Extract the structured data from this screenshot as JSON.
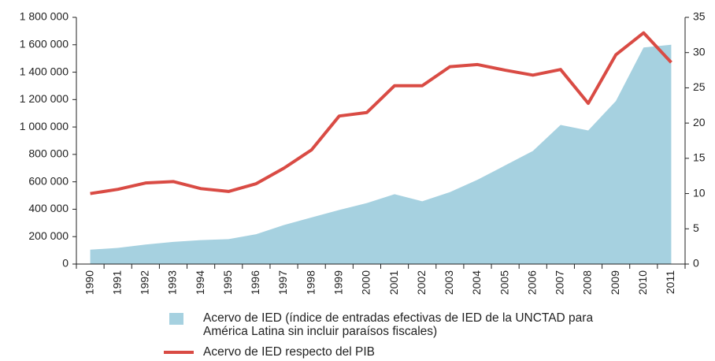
{
  "chart_data": {
    "type": "area-line",
    "categories": [
      "1990",
      "1991",
      "1992",
      "1993",
      "1994",
      "1995",
      "1996",
      "1997",
      "1998",
      "1999",
      "2000",
      "2001",
      "2002",
      "2003",
      "2004",
      "2005",
      "2006",
      "2007",
      "2008",
      "2009",
      "2010",
      "2011"
    ],
    "series": [
      {
        "name": "Acervo de IED (índice de entradas efectivas de IED de la UNCTAD para América Latina sin incluir paraísos fiscales)",
        "type": "area",
        "color": "#a6d1e0",
        "axis": "y",
        "values": [
          105000,
          118000,
          142000,
          162000,
          175000,
          182000,
          218000,
          285000,
          340000,
          395000,
          445000,
          510000,
          458000,
          525000,
          615000,
          720000,
          825000,
          1015000,
          975000,
          1190000,
          1580000,
          1600000
        ]
      },
      {
        "name": "Acervo de IED respecto del PIB",
        "type": "line",
        "color": "#d94b44",
        "axis": "y2",
        "values": [
          10.0,
          10.6,
          11.5,
          11.7,
          10.7,
          10.3,
          11.4,
          13.6,
          16.2,
          21.0,
          21.5,
          25.3,
          25.3,
          28.0,
          28.3,
          27.5,
          26.8,
          27.6,
          22.8,
          29.7,
          32.8,
          28.6
        ]
      }
    ],
    "ylim": [
      0,
      1800000
    ],
    "yticks": [
      0,
      {
        "value": 200000,
        "label": "200 000"
      },
      {
        "value": 400000,
        "label": "400 000"
      },
      {
        "value": 600000,
        "label": "600 000"
      },
      {
        "value": 800000,
        "label": "800 000"
      },
      {
        "value": 1000000,
        "label": "1 000 000"
      },
      {
        "value": 1200000,
        "label": "1 200 000"
      },
      {
        "value": 1400000,
        "label": "1 400 000"
      },
      {
        "value": 1600000,
        "label": "1 600 000"
      },
      {
        "value": 1800000,
        "label": "1 800 000"
      }
    ],
    "y2lim": [
      0,
      35
    ],
    "y2ticks": [
      0,
      5,
      10,
      15,
      20,
      25,
      30,
      35
    ],
    "grid": false,
    "legend": "bottom"
  }
}
